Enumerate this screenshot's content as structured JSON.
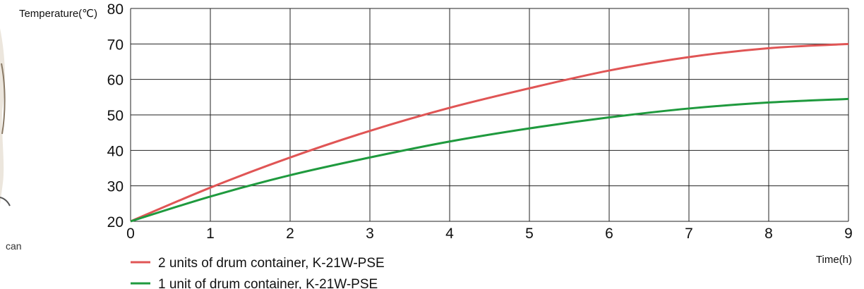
{
  "side_caption": "can",
  "chart_data": {
    "type": "line",
    "ylabel": "Temperature(℃)",
    "xlabel": "Time(h)",
    "xlim": [
      0,
      9
    ],
    "ylim": [
      20,
      80
    ],
    "x_ticks": [
      "0",
      "1",
      "2",
      "3",
      "4",
      "5",
      "6",
      "7",
      "8",
      "9"
    ],
    "y_ticks": [
      "20",
      "30",
      "40",
      "50",
      "60",
      "70",
      "80"
    ],
    "grid": true,
    "legend_position": "bottom-left",
    "x": [
      0,
      1,
      2,
      3,
      4,
      5,
      6,
      7,
      8,
      9
    ],
    "series": [
      {
        "name": "2 units of drum container, K-21W-PSE",
        "color": "#e05555",
        "values": [
          20,
          29.5,
          38,
          45.5,
          52,
          57.5,
          62.5,
          66.3,
          68.8,
          70
        ]
      },
      {
        "name": "1 unit of drum container, K-21W-PSE",
        "color": "#1f9a3e",
        "values": [
          20,
          27,
          33,
          38,
          42.5,
          46.2,
          49.3,
          51.8,
          53.5,
          54.5
        ]
      }
    ]
  }
}
